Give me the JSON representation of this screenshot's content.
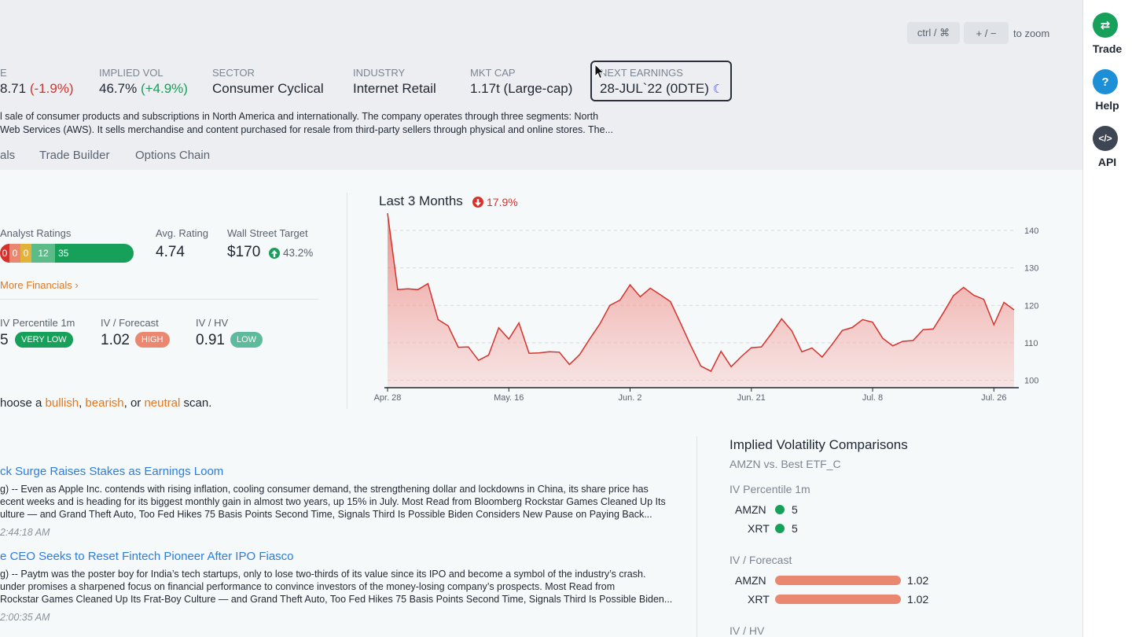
{
  "zoom": {
    "ctrl_label": "ctrl / ⌘",
    "plusminus_label": "+ / −",
    "hint": "to zoom"
  },
  "stats": [
    {
      "label": "E",
      "value": "8.71",
      "change": "(-1.9%)"
    },
    {
      "label": "IMPLIED VOL",
      "value": "46.7%",
      "change": "(+4.9%)"
    },
    {
      "label": "SECTOR",
      "value": "Consumer Cyclical"
    },
    {
      "label": "INDUSTRY",
      "value": "Internet Retail"
    },
    {
      "label": "MKT CAP",
      "value": "1.17t (Large-cap)"
    },
    {
      "label": "NEXT EARNINGS",
      "value": "28-JUL`22 (0DTE)"
    }
  ],
  "description": {
    "line1": "l sale of consumer products and subscriptions in North America and internationally. The company operates through three segments: North",
    "line2": "Web Services (AWS). It sells merchandise and content purchased for resale from third-party sellers through physical and online stores. The..."
  },
  "tabs": [
    "als",
    "Trade Builder",
    "Options Chain"
  ],
  "analyst": {
    "ratings_label": "Analyst Ratings",
    "ratings": [
      {
        "value": "0",
        "color": "#d6322c"
      },
      {
        "value": "0",
        "color": "#ea8770"
      },
      {
        "value": "0",
        "color": "#e2b23a"
      },
      {
        "value": "12",
        "color": "#5dbb8a"
      },
      {
        "value": "35",
        "color": "#17a05a"
      }
    ],
    "avg_label": "Avg. Rating",
    "avg_value": "4.74",
    "target_label": "Wall Street Target",
    "target_value": "$170",
    "target_change": "43.2%",
    "more_link": "More Financials"
  },
  "iv": {
    "pct_label": "IV Percentile 1m",
    "pct_value": "5",
    "pct_badge": "VERY LOW",
    "forecast_label": "IV / Forecast",
    "forecast_value": "1.02",
    "forecast_badge": "HIGH",
    "hv_label": "IV / HV",
    "hv_value": "0.91",
    "hv_badge": "LOW"
  },
  "scan": {
    "prefix": "hoose a ",
    "bullish": "bullish",
    "comma1": ", ",
    "bearish": "bearish",
    "or": ", or ",
    "neutral": "neutral",
    "suffix": " scan."
  },
  "chart_data": {
    "type": "area",
    "title": "Last 3 Months",
    "change": "17.9%",
    "x_ticks": [
      "Apr. 28",
      "May. 16",
      "Jun. 2",
      "Jun. 21",
      "Jul. 8",
      "Jul. 26"
    ],
    "y_ticks": [
      100,
      110,
      120,
      130,
      140
    ],
    "ylim": [
      98,
      144
    ],
    "grid": true,
    "color": "#d6322c",
    "values": [
      144.6,
      124.2,
      124.4,
      124.2,
      125.8,
      116.2,
      114.5,
      108.8,
      108.9,
      105.3,
      106.7,
      114.0,
      111.0,
      115.3,
      107.2,
      107.3,
      107.6,
      107.5,
      104.2,
      106.8,
      111.0,
      115.0,
      120.0,
      121.4,
      125.5,
      122.3,
      124.6,
      122.8,
      121.0,
      115.2,
      109.3,
      103.8,
      102.4,
      107.7,
      103.6,
      106.3,
      108.7,
      108.9,
      112.5,
      116.4,
      113.2,
      107.6,
      108.6,
      106.2,
      109.6,
      113.3,
      114.1,
      116.2,
      115.5,
      111.2,
      109.2,
      110.4,
      110.6,
      113.5,
      113.7,
      118.0,
      122.6,
      124.8,
      122.7,
      121.6,
      114.8,
      120.8,
      118.8
    ]
  },
  "news": [
    {
      "title": "ck Surge Raises Stakes as Earnings Loom",
      "body1": "g) -- Even as Apple Inc. contends with rising inflation, cooling consumer demand, the strengthening dollar and lockdowns in China, its share price has",
      "body2": "ecent weeks and is heading for its biggest monthly gain in almost two years, up 15% in July. Most Read from Bloomberg Rockstar Games Cleaned Up Its",
      "body3": "ulture — and Grand Theft Auto, Too Fed Hikes 75 Basis Points Second Time, Signals Third Is Possible Biden Considers New Pause on Paying Back...",
      "time": "2:44:18 AM"
    },
    {
      "title": "e CEO Seeks to Reset Fintech Pioneer After IPO Fiasco",
      "body1": "g) -- Paytm was the poster boy for India’s tech startups, only to lose two-thirds of its value since its IPO and become a symbol of the industry’s crash.",
      "body2": "under promises a sharpened focus on financial performance to convince investors of the money-losing company’s prospects. Most Read from",
      "body3": "Rockstar Games Cleaned Up Its Frat-Boy Culture — and Grand Theft Auto, Too Fed Hikes 75 Basis Points Second Time, Signals Third Is Possible Biden...",
      "time": "2:00:35 AM"
    }
  ],
  "ivc": {
    "title": "Implied Volatility Comparisons",
    "subtitle": "AMZN vs. Best ETF_C",
    "pct_label": "IV Percentile 1m",
    "pct_rows": [
      {
        "ticker": "AMZN",
        "value": "5"
      },
      {
        "ticker": "XRT",
        "value": "5"
      }
    ],
    "forecast_label": "IV / Forecast",
    "forecast_rows": [
      {
        "ticker": "AMZN",
        "value": "1.02"
      },
      {
        "ticker": "XRT",
        "value": "1.02"
      }
    ],
    "hv_label": "IV / HV"
  },
  "rightbar": [
    {
      "label": "Trade",
      "icon": "swap-icon",
      "color": "#17a05a"
    },
    {
      "label": "Help",
      "icon": "question-icon",
      "color": "#1c8fd6"
    },
    {
      "label": "API",
      "icon": "code-icon",
      "color": "#3d4652"
    }
  ]
}
